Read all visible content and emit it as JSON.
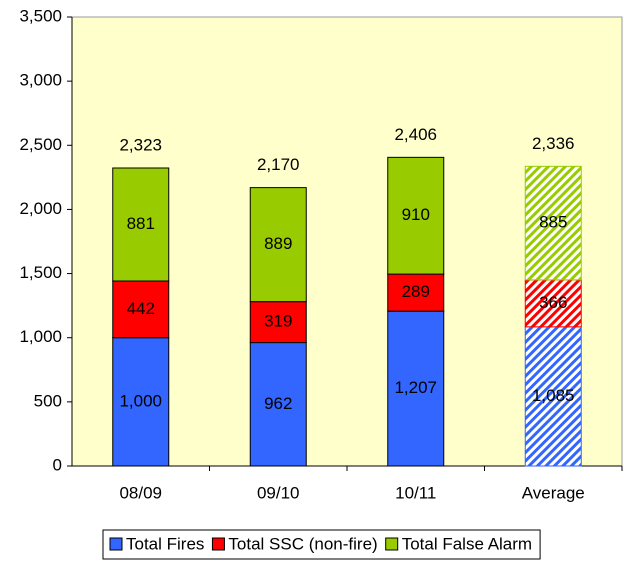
{
  "chart_data": {
    "type": "stacked-bar",
    "categories": [
      "08/09",
      "09/10",
      "10/11",
      "Average"
    ],
    "hatched": [
      false,
      false,
      false,
      true
    ],
    "series": [
      {
        "name": "Total Fires",
        "color": "#3366ff",
        "values": [
          1000,
          962,
          1207,
          1085
        ],
        "value_labels": [
          "1,000",
          "962",
          "1,207",
          "1,085"
        ]
      },
      {
        "name": "Total SSC (non-fire)",
        "color": "#ff0000",
        "values": [
          442,
          319,
          289,
          366
        ]
      },
      {
        "name": "Total False Alarm",
        "color": "#99cc00",
        "values": [
          881,
          889,
          910,
          885
        ]
      }
    ],
    "totals": [
      2323,
      2170,
      2406,
      2336
    ],
    "total_labels": [
      "2,323",
      "2,170",
      "2,406",
      "2,336"
    ],
    "ylim": [
      0,
      3500
    ],
    "yticks": [
      0,
      500,
      {
        "value": 1000,
        "label": "1,000"
      },
      {
        "value": 1500,
        "label": "1,500"
      },
      {
        "value": 2000,
        "label": "2,000"
      },
      {
        "value": 2500,
        "label": "2,500"
      },
      {
        "value": 3000,
        "label": "3,000"
      },
      {
        "value": 3500,
        "label": "3,500"
      }
    ],
    "grid": false,
    "legend": "bottom",
    "plot_background": "#ffffcc"
  }
}
